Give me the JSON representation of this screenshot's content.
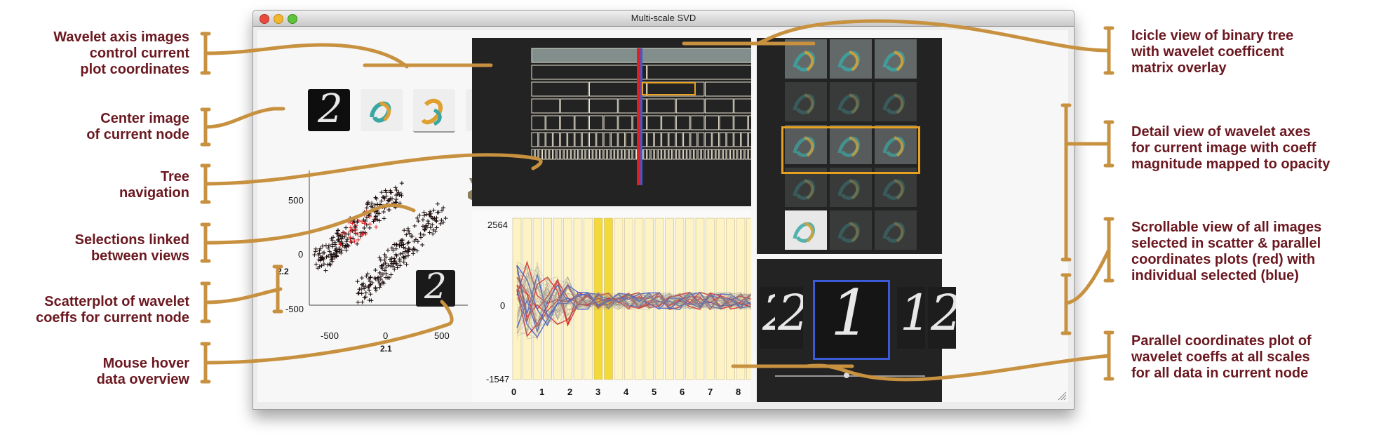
{
  "window": {
    "title": "Multi-scale SVD"
  },
  "annotations": {
    "left": [
      "Wavelet axis images\ncontrol current\nplot coordinates",
      "Center image\nof current node",
      "Tree\nnavigation",
      "Selections linked\nbetween views",
      "Scatterplot of wavelet\ncoeffs for current node",
      "Mouse hover\ndata overview"
    ],
    "right": [
      "Icicle view of binary tree\nwith wavelet coefficent\nmatrix overlay",
      "Detail view of wavelet axes\nfor current image with coeff\nmagnitude mapped to opacity",
      "Scrollable view of all images\nselected in scatter & parallel\ncoordinates plots (red) with\nindividual selected (blue)",
      "Parallel coordinates plot of\nwavelet coeffs at all scales\nfor all data in current node"
    ]
  },
  "scatter": {
    "y_ticks": [
      "500",
      "0",
      "-500"
    ],
    "x_ticks": [
      "-500",
      "0",
      "500"
    ],
    "x_label": "2.1",
    "y_label": "2.2",
    "hover_digit": "2"
  },
  "parallel": {
    "y_ticks": [
      "2564",
      "0",
      "-1547"
    ],
    "x_ticks": [
      "0",
      "1",
      "2",
      "3",
      "4",
      "5",
      "6",
      "7",
      "8"
    ],
    "selected_scale": 2
  },
  "center_image": {
    "digit": "2"
  },
  "carousel": {
    "digits": [
      "2",
      "2",
      "1",
      "1",
      "2"
    ],
    "selected_index": 2
  },
  "colors": {
    "annotation_text": "#6b1820",
    "leader_line": "#c7913f",
    "selection_red": "#e02020",
    "selection_blue": "#3a5ad8",
    "highlight_orange": "#e8a020",
    "pc_band": "#fdf3c4",
    "pc_band_selected": "#f4d93a"
  },
  "icons": [
    "close-icon",
    "minimize-icon",
    "zoom-icon",
    "tree-navigation-icon",
    "resize-grip-icon"
  ]
}
